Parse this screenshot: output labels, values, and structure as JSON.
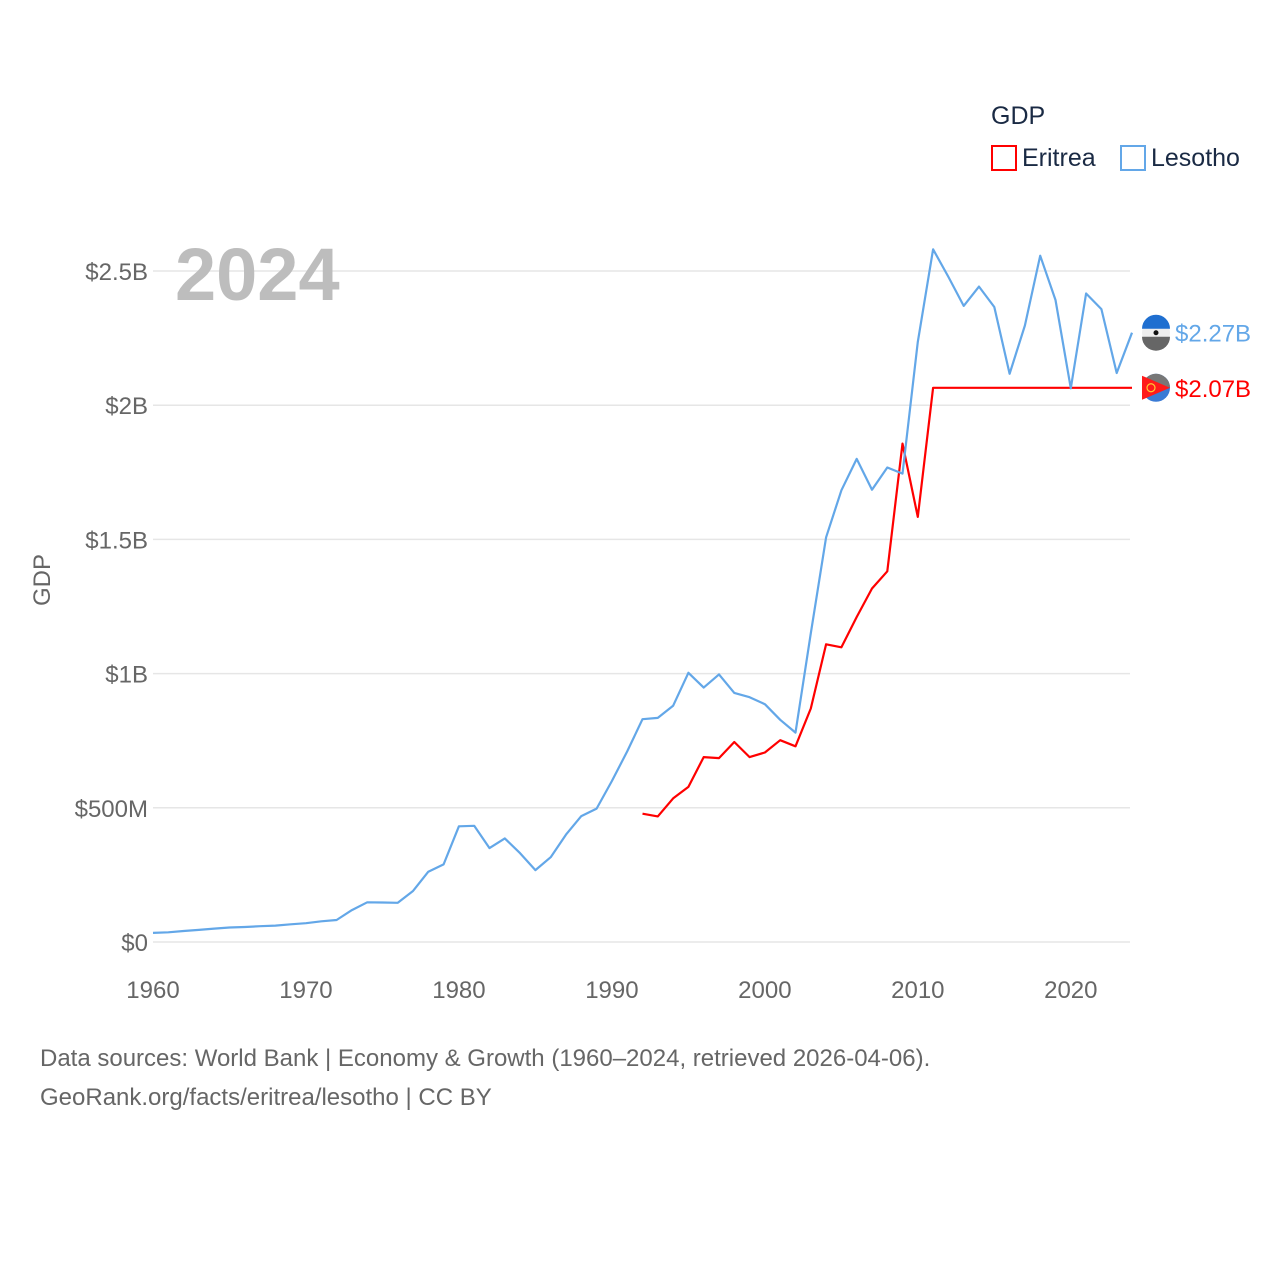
{
  "chart_data": {
    "type": "line",
    "title": "",
    "year_overlay": "2024",
    "xlabel": "",
    "ylabel": "GDP",
    "xlim": [
      1960,
      2024
    ],
    "ylim": [
      0,
      2.5
    ],
    "grid": true,
    "x_ticks": [
      1960,
      1970,
      1980,
      1990,
      2000,
      2010,
      2020
    ],
    "x_tick_labels": [
      "1960",
      "1970",
      "1980",
      "1990",
      "2000",
      "2010",
      "2020"
    ],
    "y_ticks": [
      0,
      0.5,
      1,
      1.5,
      2,
      2.5
    ],
    "y_tick_labels": [
      "$0",
      "$500M",
      "$1B",
      "$1.5B",
      "$2B",
      "$2.5B"
    ],
    "legend": {
      "title": "GDP",
      "placement": "top-right"
    },
    "units": "USD billions",
    "series": [
      {
        "name": "Eritrea",
        "color": "#ff0000",
        "end_label": "$2.07B",
        "x": [
          1992,
          1993,
          1994,
          1995,
          1996,
          1997,
          1998,
          1999,
          2000,
          2001,
          2002,
          2003,
          2004,
          2005,
          2006,
          2007,
          2008,
          2009,
          2010,
          2011,
          2024
        ],
        "values": [
          0.478,
          0.468,
          0.535,
          0.578,
          0.689,
          0.685,
          0.745,
          0.689,
          0.706,
          0.752,
          0.729,
          0.87,
          1.109,
          1.098,
          1.211,
          1.317,
          1.381,
          1.857,
          1.584,
          2.065,
          2.065
        ]
      },
      {
        "name": "Lesotho",
        "color": "#63a7e8",
        "end_label": "$2.27B",
        "x": [
          1960,
          1961,
          1962,
          1963,
          1964,
          1965,
          1966,
          1967,
          1968,
          1969,
          1970,
          1971,
          1972,
          1973,
          1974,
          1975,
          1976,
          1977,
          1978,
          1979,
          1980,
          1981,
          1982,
          1983,
          1984,
          1985,
          1986,
          1987,
          1988,
          1989,
          1990,
          1991,
          1992,
          1993,
          1994,
          1995,
          1996,
          1997,
          1998,
          1999,
          2000,
          2001,
          2002,
          2003,
          2004,
          2005,
          2006,
          2007,
          2008,
          2009,
          2010,
          2011,
          2012,
          2013,
          2014,
          2015,
          2016,
          2017,
          2018,
          2019,
          2020,
          2021,
          2022,
          2023,
          2024
        ],
        "values": [
          0.034,
          0.036,
          0.041,
          0.045,
          0.05,
          0.054,
          0.056,
          0.059,
          0.061,
          0.066,
          0.07,
          0.077,
          0.082,
          0.119,
          0.148,
          0.147,
          0.146,
          0.19,
          0.262,
          0.289,
          0.431,
          0.433,
          0.35,
          0.386,
          0.331,
          0.268,
          0.316,
          0.4,
          0.469,
          0.497,
          0.6,
          0.71,
          0.83,
          0.835,
          0.88,
          1.003,
          0.948,
          0.997,
          0.928,
          0.912,
          0.886,
          0.828,
          0.78,
          1.15,
          1.508,
          1.683,
          1.8,
          1.685,
          1.768,
          1.745,
          2.236,
          2.581,
          2.478,
          2.37,
          2.442,
          2.366,
          2.117,
          2.297,
          2.557,
          2.392,
          2.063,
          2.416,
          2.358,
          2.12,
          2.27
        ]
      }
    ]
  },
  "footer": {
    "line1": "Data sources: World Bank | Economy & Growth (1960–2024, retrieved 2026-04-06).",
    "line2": "GeoRank.org/facts/eritrea/lesotho | CC BY"
  }
}
